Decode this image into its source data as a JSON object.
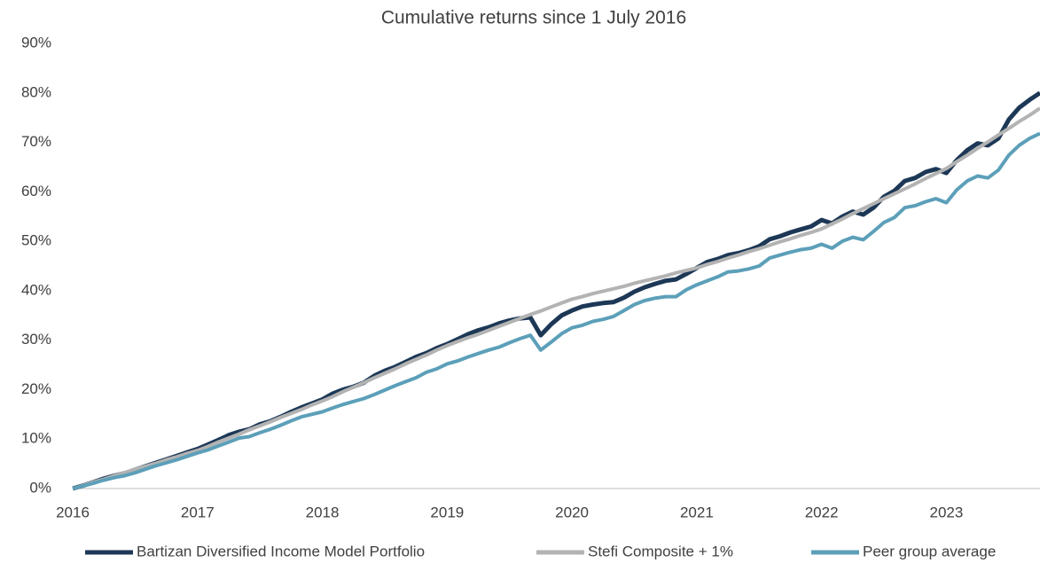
{
  "chart_data": {
    "type": "line",
    "title": "Cumulative returns since 1 July 2016",
    "categories": [
      "2016",
      null,
      null,
      null,
      null,
      null,
      null,
      null,
      null,
      null,
      null,
      null,
      "2017",
      null,
      null,
      null,
      null,
      null,
      null,
      null,
      null,
      null,
      null,
      null,
      "2018",
      null,
      null,
      null,
      null,
      null,
      null,
      null,
      null,
      null,
      null,
      null,
      "2019",
      null,
      null,
      null,
      null,
      null,
      null,
      null,
      null,
      null,
      null,
      null,
      "2020",
      null,
      null,
      null,
      null,
      null,
      null,
      null,
      null,
      null,
      null,
      null,
      "2021",
      null,
      null,
      null,
      null,
      null,
      null,
      null,
      null,
      null,
      null,
      null,
      "2022",
      null,
      null,
      null,
      null,
      null,
      null,
      null,
      null,
      null,
      null,
      null,
      "2023",
      null,
      null,
      null,
      null,
      null,
      null,
      null,
      null,
      null
    ],
    "series": [
      {
        "name": "Bartizan Diversified Income Model Portfolio",
        "color": "#1d3856",
        "values": [
          0,
          0.6,
          1.3,
          2.0,
          2.6,
          3.1,
          3.8,
          4.5,
          5.2,
          5.9,
          6.6,
          7.3,
          8.0,
          8.9,
          9.8,
          10.8,
          11.5,
          12.0,
          13.0,
          13.6,
          14.5,
          15.5,
          16.4,
          17.2,
          18.0,
          19.2,
          20.0,
          20.6,
          21.4,
          22.8,
          23.8,
          24.6,
          25.6,
          26.6,
          27.4,
          28.4,
          29.2,
          30.2,
          31.2,
          32.0,
          32.6,
          33.4,
          34.0,
          34.4,
          34.6,
          31.0,
          33.2,
          35.0,
          36.0,
          36.8,
          37.2,
          37.5,
          37.7,
          38.6,
          39.8,
          40.7,
          41.4,
          42.0,
          42.3,
          43.4,
          44.6,
          45.8,
          46.4,
          47.2,
          47.6,
          48.2,
          49.0,
          50.4,
          51.0,
          51.8,
          52.4,
          53.0,
          54.3,
          53.6,
          55.0,
          56.0,
          55.4,
          56.8,
          59.0,
          60.2,
          62.2,
          62.8,
          64.0,
          64.6,
          63.8,
          66.4,
          68.4,
          69.8,
          69.4,
          70.8,
          74.6,
          77.0,
          78.6,
          80.0
        ]
      },
      {
        "name": "Stefi Composite + 1%",
        "color": "#b3b3b3",
        "values": [
          0,
          0.6,
          1.3,
          1.9,
          2.6,
          3.2,
          3.9,
          4.5,
          5.1,
          5.8,
          6.4,
          7.1,
          7.7,
          8.5,
          9.4,
          10.2,
          11.0,
          11.9,
          12.7,
          13.5,
          14.4,
          15.2,
          16.0,
          16.9,
          17.7,
          18.6,
          19.6,
          20.5,
          21.4,
          22.4,
          23.3,
          24.2,
          25.2,
          26.1,
          27.0,
          28.0,
          28.9,
          29.7,
          30.5,
          31.2,
          32.0,
          32.8,
          33.6,
          34.4,
          35.2,
          35.9,
          36.7,
          37.5,
          38.3,
          38.8,
          39.4,
          39.9,
          40.4,
          40.9,
          41.5,
          42.0,
          42.5,
          43.0,
          43.6,
          44.1,
          44.6,
          45.3,
          45.9,
          46.6,
          47.2,
          47.9,
          48.5,
          49.2,
          49.9,
          50.5,
          51.2,
          51.8,
          52.5,
          53.5,
          54.5,
          55.6,
          56.6,
          57.6,
          58.6,
          59.6,
          60.6,
          61.6,
          62.7,
          63.7,
          64.7,
          66.1,
          67.4,
          68.8,
          70.1,
          71.5,
          72.8,
          74.2,
          75.5,
          76.9
        ]
      },
      {
        "name": "Peer group average",
        "color": "#5c9fb9",
        "values": [
          0,
          0.5,
          1.1,
          1.7,
          2.2,
          2.6,
          3.2,
          3.9,
          4.6,
          5.2,
          5.8,
          6.5,
          7.2,
          7.8,
          8.6,
          9.4,
          10.2,
          10.5,
          11.3,
          12.0,
          12.8,
          13.7,
          14.5,
          15.0,
          15.5,
          16.3,
          17.0,
          17.6,
          18.2,
          19.0,
          19.9,
          20.8,
          21.6,
          22.4,
          23.5,
          24.2,
          25.2,
          25.8,
          26.6,
          27.3,
          28.0,
          28.6,
          29.5,
          30.3,
          31.0,
          28.0,
          29.6,
          31.3,
          32.5,
          33.0,
          33.8,
          34.2,
          34.8,
          36.0,
          37.2,
          38.0,
          38.5,
          38.8,
          38.8,
          40.2,
          41.2,
          42.0,
          42.8,
          43.8,
          44.0,
          44.4,
          45.0,
          46.6,
          47.2,
          47.8,
          48.3,
          48.6,
          49.4,
          48.6,
          50.0,
          50.8,
          50.3,
          52.0,
          53.8,
          54.8,
          56.8,
          57.2,
          58.0,
          58.6,
          57.8,
          60.4,
          62.2,
          63.2,
          62.8,
          64.4,
          67.4,
          69.4,
          70.8,
          71.8
        ]
      }
    ],
    "ylim": [
      0,
      90
    ],
    "yticks": [
      {
        "value": 0,
        "label": "0%"
      },
      {
        "value": 10,
        "label": "10%"
      },
      {
        "value": 20,
        "label": "20%"
      },
      {
        "value": 30,
        "label": "30%"
      },
      {
        "value": 40,
        "label": "40%"
      },
      {
        "value": 50,
        "label": "50%"
      },
      {
        "value": 60,
        "label": "60%"
      },
      {
        "value": 70,
        "label": "70%"
      },
      {
        "value": 80,
        "label": "80%"
      },
      {
        "value": 90,
        "label": "90%"
      }
    ],
    "grid": false,
    "legend": "bottom"
  }
}
